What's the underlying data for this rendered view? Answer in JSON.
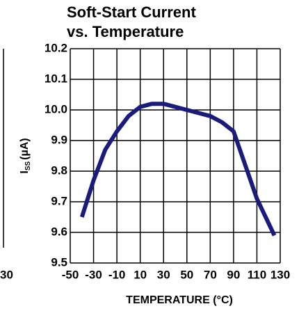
{
  "chart_data": {
    "type": "line",
    "title": [
      "Soft-Start Current",
      "vs. Temperature"
    ],
    "xlabel": "TEMPERATURE (°C)",
    "ylabel": {
      "symbol": "I",
      "subscript": "SS",
      "unit": "(µA)"
    },
    "edge_label": "30",
    "x": [
      -40,
      -30,
      -20,
      -10,
      0,
      10,
      20,
      30,
      50,
      70,
      80,
      90,
      100,
      110,
      120,
      125
    ],
    "series": [
      {
        "name": "Iss",
        "color": "#1b1b7e",
        "values": [
          9.65,
          9.77,
          9.87,
          9.93,
          9.98,
          10.01,
          10.02,
          10.02,
          10.0,
          9.98,
          9.96,
          9.93,
          9.82,
          9.71,
          9.63,
          9.59
        ]
      }
    ],
    "xlim": [
      -50,
      130
    ],
    "xticks": [
      -50,
      -30,
      -10,
      10,
      30,
      50,
      70,
      90,
      110,
      130
    ],
    "ylim": [
      9.5,
      10.2
    ],
    "yticks": [
      {
        "value": 9.5,
        "label": "9.5"
      },
      {
        "value": 9.6,
        "label": "9.6"
      },
      {
        "value": 9.7,
        "label": "9.7"
      },
      {
        "value": 9.8,
        "label": "9.8"
      },
      {
        "value": 9.9,
        "label": "9.9"
      },
      {
        "value": 10.0,
        "label": "10.0"
      },
      {
        "value": 10.1,
        "label": "10.1"
      },
      {
        "value": 10.2,
        "label": "10.2"
      }
    ],
    "grid": true
  }
}
